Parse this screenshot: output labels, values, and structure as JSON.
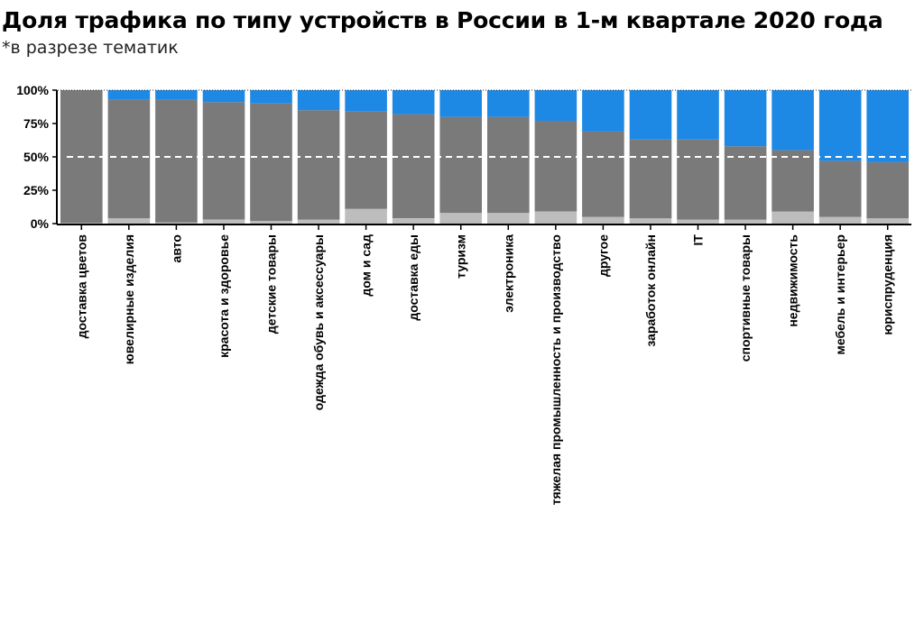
{
  "title": "Доля трафика по типу устройств в России в 1-м квартале 2020 года",
  "subtitle": "*в разрезе тематик",
  "colors": {
    "light": "#bdbdbd",
    "mid": "#7a7a7a",
    "blue": "#1e88e5"
  },
  "chart_data": {
    "type": "bar",
    "stacked": true,
    "ylim": [
      0,
      100
    ],
    "yticks": [
      "0%",
      "25%",
      "50%",
      "75%",
      "100%"
    ],
    "reference_line": 50,
    "categories": [
      "доставка цветов",
      "ювелирные изделия",
      "авто",
      "красота и здоровье",
      "детские товары",
      "одежда обувь и аксессуары",
      "дом и сад",
      "доставка еды",
      "туризм",
      "электроника",
      "тяжелая промышленность и производство",
      "другое",
      "заработок онлайн",
      "IT",
      "спортивные товары",
      "недвижимость",
      "мебель и интерьер",
      "юриспруденция"
    ],
    "series": [
      {
        "values": [
          0.5,
          4,
          1,
          3,
          2,
          3,
          11,
          4,
          8,
          8,
          9,
          5,
          4,
          3,
          3,
          9,
          5,
          4
        ]
      },
      {
        "values": [
          99.5,
          89,
          92,
          88,
          88,
          82,
          73,
          78,
          72,
          72,
          68,
          64,
          59,
          60,
          55,
          46,
          42,
          42
        ]
      },
      {
        "values": [
          0,
          7,
          7,
          9,
          10,
          15,
          16,
          18,
          20,
          20,
          23,
          31,
          37,
          37,
          42,
          45,
          53,
          54
        ]
      }
    ]
  }
}
